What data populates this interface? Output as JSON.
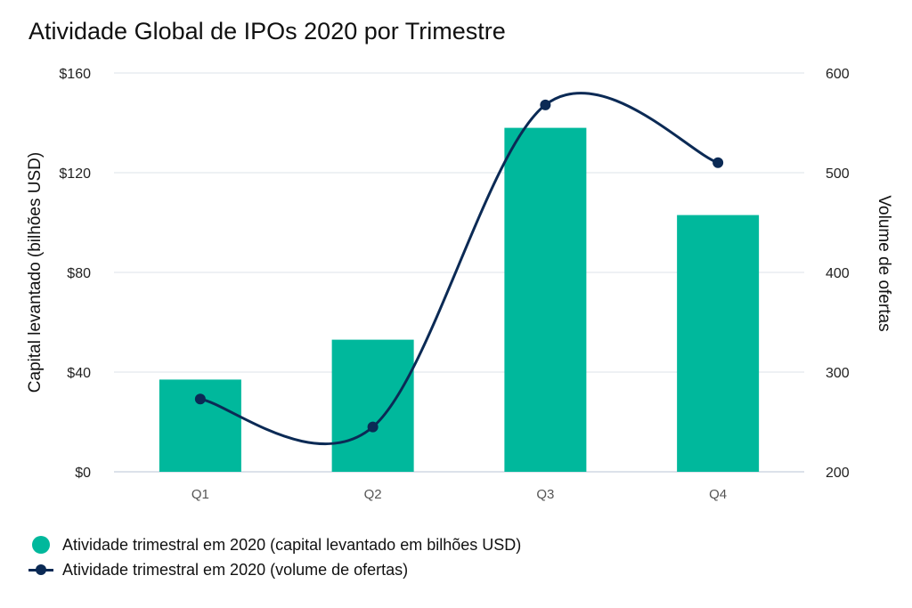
{
  "title": "Atividade Global de IPOs 2020 por Trimestre",
  "colors": {
    "bar": "#00b89c",
    "line": "#0b2a55",
    "grid": "#dde3ea",
    "axis": "#b9c4d6"
  },
  "chart_data": {
    "type": "bar",
    "categories": [
      "Q1",
      "Q2",
      "Q3",
      "Q4"
    ],
    "series": [
      {
        "name": "Atividade trimestral em 2020 (capital levantado em bilhões USD)",
        "type": "bar",
        "axis": "left",
        "values": [
          37,
          53,
          138,
          103
        ]
      },
      {
        "name": "Atividade trimestral em 2020 (volume de ofertas)",
        "type": "line",
        "axis": "right",
        "values": [
          273,
          245,
          568,
          510
        ]
      }
    ],
    "ylabel": "Capital levantado (bilhões USD)",
    "y2label": "Volume de ofertas",
    "ylim": [
      0,
      160
    ],
    "y2lim": [
      200,
      600
    ],
    "yticks": [
      "$0",
      "$40",
      "$80",
      "$120",
      "$160"
    ],
    "y2ticks": [
      "200",
      "300",
      "400",
      "500",
      "600"
    ],
    "grid": true,
    "legend_position": "bottom-left"
  }
}
